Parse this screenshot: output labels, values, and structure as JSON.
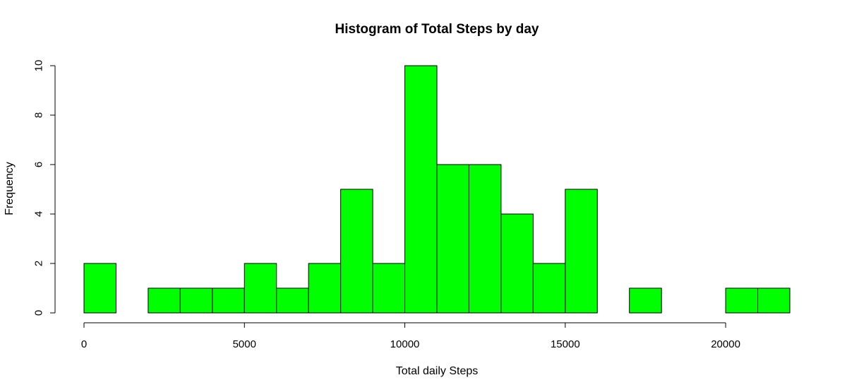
{
  "chart_data": {
    "type": "bar",
    "title": "Histogram of Total Steps by day",
    "xlabel": "Total daily Steps",
    "ylabel": "Frequency",
    "bin_width": 1000,
    "bin_starts": [
      0,
      1000,
      2000,
      3000,
      4000,
      5000,
      6000,
      7000,
      8000,
      9000,
      10000,
      11000,
      12000,
      13000,
      14000,
      15000,
      16000,
      17000,
      18000,
      19000,
      20000,
      21000
    ],
    "values": [
      2,
      0,
      1,
      1,
      1,
      2,
      1,
      2,
      5,
      2,
      10,
      6,
      6,
      4,
      2,
      5,
      0,
      1,
      0,
      0,
      1,
      1
    ],
    "xlim": [
      0,
      22000
    ],
    "ylim": [
      0,
      10
    ],
    "x_ticks": [
      0,
      5000,
      10000,
      15000,
      20000
    ],
    "y_ticks": [
      0,
      2,
      4,
      6,
      8,
      10
    ],
    "bar_color": "#00ff00",
    "edge_color": "#000000",
    "grid": false,
    "legend": "none"
  }
}
